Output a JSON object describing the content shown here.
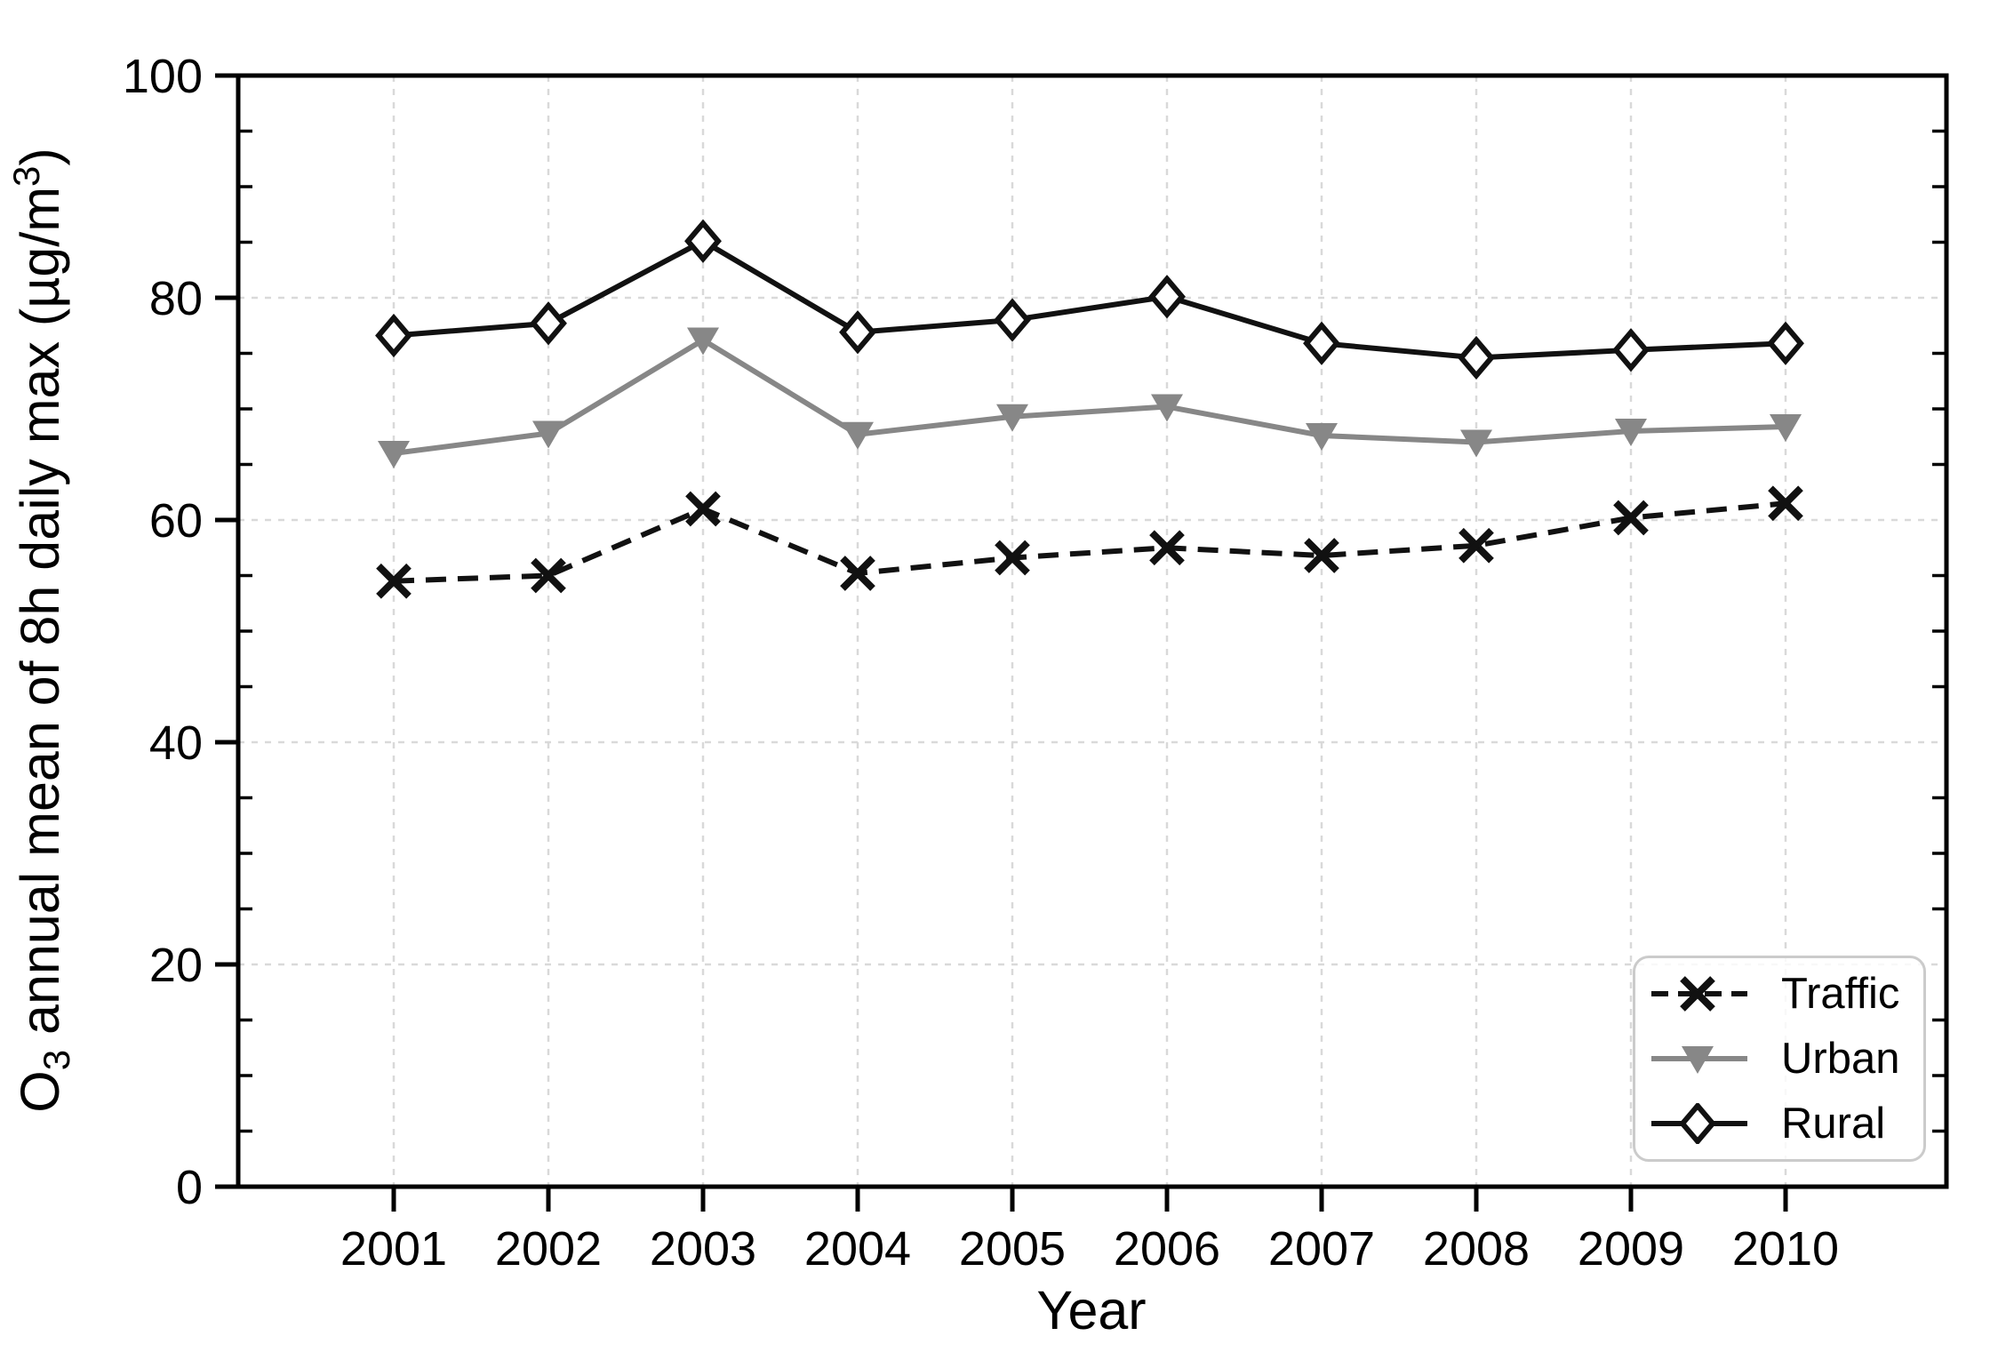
{
  "chart_data": {
    "type": "line",
    "title": "",
    "xlabel": "Year",
    "ylabel": "O3 annual mean of 8h daily max (µg/m³)",
    "ylabel_rich": {
      "base": "O",
      "sub": "3",
      "mid": " annual mean of 8h daily max (µg/m",
      "sup": "3",
      "close": ")"
    },
    "categories": [
      "2001",
      "2002",
      "2003",
      "2004",
      "2005",
      "2006",
      "2007",
      "2008",
      "2009",
      "2010"
    ],
    "ylim": [
      0,
      100
    ],
    "yticks": [
      0,
      20,
      40,
      60,
      80,
      100
    ],
    "minor_ytick_step": 5,
    "grid": "dashed-major-both-axes",
    "legend_position": "lower-right",
    "axis_color": "#000000",
    "grid_color": "#d9d9d9",
    "series": [
      {
        "name": "Traffic",
        "color": "#111111",
        "line_style": "dashed",
        "marker": "x",
        "values": [
          54.5,
          55.0,
          61.0,
          55.2,
          56.6,
          57.5,
          56.8,
          57.7,
          60.2,
          61.5
        ]
      },
      {
        "name": "Urban",
        "color": "#878787",
        "line_style": "solid",
        "marker": "triangle-down",
        "values": [
          66.0,
          67.8,
          76.2,
          67.7,
          69.3,
          70.2,
          67.6,
          67.0,
          68.0,
          68.4
        ]
      },
      {
        "name": "Rural",
        "color": "#111111",
        "line_style": "solid",
        "marker": "diamond-open",
        "values": [
          76.6,
          77.7,
          85.1,
          76.9,
          78.0,
          80.1,
          75.9,
          74.6,
          75.3,
          75.9
        ]
      }
    ]
  }
}
